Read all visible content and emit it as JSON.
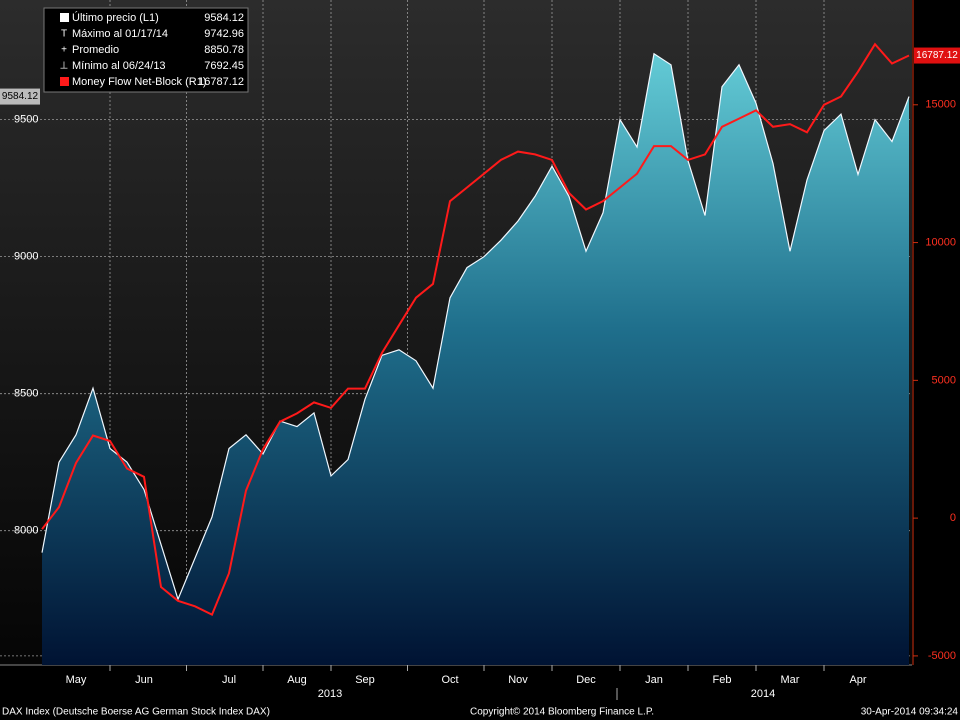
{
  "chart_data": {
    "type": "area",
    "categories": [
      null,
      null,
      "May",
      null,
      null,
      null,
      "Jun",
      null,
      null,
      null,
      null,
      "Jul",
      null,
      null,
      null,
      "Aug",
      null,
      null,
      null,
      "Sep",
      null,
      null,
      null,
      null,
      "Oct",
      null,
      null,
      null,
      "Nov",
      null,
      null,
      null,
      "Dec",
      null,
      null,
      null,
      "Jan",
      null,
      null,
      null,
      "Feb",
      null,
      null,
      null,
      "Mar",
      null,
      null,
      null,
      "Apr",
      null,
      null,
      null
    ],
    "year_labels": [
      "2013",
      "2014"
    ],
    "series": [
      {
        "name": "Último precio (L1)",
        "legend_value": 9584.12,
        "color": "#5fc5d0",
        "axis": "y",
        "values": [
          7920,
          8250,
          8350,
          8520,
          8300,
          8250,
          8150,
          7950,
          7750,
          7900,
          8050,
          8300,
          8350,
          8280,
          8400,
          8380,
          8430,
          8200,
          8260,
          8480,
          8640,
          8660,
          8620,
          8520,
          8850,
          8960,
          9000,
          9060,
          9130,
          9220,
          9330,
          9220,
          9020,
          9160,
          9500,
          9400,
          9740,
          9700,
          9350,
          9150,
          9620,
          9700,
          9560,
          9340,
          9020,
          9280,
          9460,
          9520,
          9300,
          9500,
          9420,
          9584.12
        ]
      },
      {
        "name": "Money Flow Net-Block (R1)",
        "legend_value": 16787.12,
        "color": "#ff1a1a",
        "axis": "y2",
        "values": [
          -400,
          400,
          2000,
          3000,
          2800,
          1800,
          1500,
          -2500,
          -3000,
          -3200,
          -3500,
          -2000,
          1000,
          2500,
          3500,
          3800,
          4200,
          4000,
          4700,
          4700,
          6000,
          7000,
          8000,
          8500,
          11500,
          12000,
          12500,
          13000,
          13300,
          13200,
          13000,
          11800,
          11200,
          11500,
          12000,
          12500,
          13500,
          13500,
          13000,
          13200,
          14200,
          14500,
          14800,
          14200,
          14300,
          14000,
          15000,
          15300,
          16200,
          17200,
          16500,
          16787.12
        ]
      }
    ],
    "stats": [
      {
        "label": "Máximo al 01/17/14",
        "value": 9742.96
      },
      {
        "label": "Promedio",
        "value": 8850.78
      },
      {
        "label": "Mínimo al 06/24/13",
        "value": 7692.45
      }
    ],
    "ylim": [
      7510,
      9900
    ],
    "yticks": [
      8000,
      8500,
      9000,
      9500
    ],
    "y2lim": [
      -5330,
      18440
    ],
    "y2ticks": [
      -5000,
      0,
      5000,
      10000,
      15000
    ],
    "grid": true,
    "footer": {
      "left": "DAX Index (Deutsche Boerse AG German Stock Index DAX)",
      "center": "Copyright© 2014 Bloomberg Finance L.P.",
      "right": "30-Apr-2014 09:34:24"
    }
  }
}
